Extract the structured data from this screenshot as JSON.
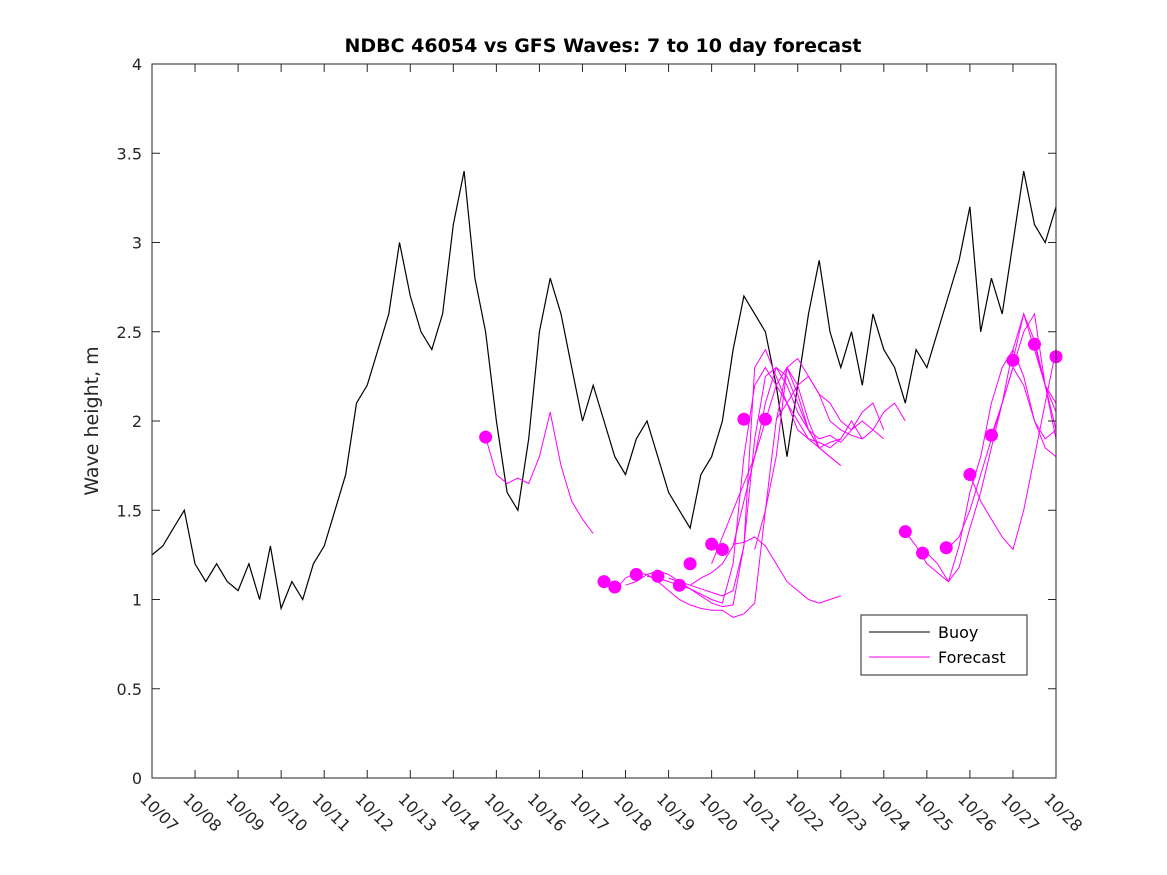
{
  "chart_data": {
    "type": "line",
    "title": "NDBC 46054 vs GFS Waves: 7 to 10 day forecast",
    "xlabel": "",
    "ylabel": "Wave height, m",
    "xlim": [
      0,
      21
    ],
    "ylim": [
      0,
      4
    ],
    "grid": false,
    "legend_location": "bottom-right",
    "x_unit": "days since 10/07 00:00",
    "x_tick_labels": [
      "10/07",
      "10/08",
      "10/09",
      "10/10",
      "10/11",
      "10/12",
      "10/13",
      "10/14",
      "10/15",
      "10/16",
      "10/17",
      "10/18",
      "10/19",
      "10/20",
      "10/21",
      "10/22",
      "10/23",
      "10/24",
      "10/25",
      "10/26",
      "10/27",
      "10/28"
    ],
    "y_ticks": [
      0,
      0.5,
      1,
      1.5,
      2,
      2.5,
      3,
      3.5,
      4
    ],
    "y_tick_labels": [
      "0",
      "0.5",
      "1",
      "1.5",
      "2",
      "2.5",
      "3",
      "3.5",
      "4"
    ],
    "colors": {
      "buoy": "#000000",
      "forecast": "#ff00ff",
      "axis": "#262626"
    },
    "buoy": {
      "name": "Buoy",
      "x": [
        0,
        0.25,
        0.5,
        0.75,
        1.0,
        1.25,
        1.5,
        1.75,
        2.0,
        2.25,
        2.5,
        2.75,
        3.0,
        3.25,
        3.5,
        3.75,
        4.0,
        4.25,
        4.5,
        4.75,
        5.0,
        5.25,
        5.5,
        5.75,
        6.0,
        6.25,
        6.5,
        6.75,
        7.0,
        7.25,
        7.5,
        7.75,
        8.0,
        8.25,
        8.5,
        8.75,
        9.0,
        9.25,
        9.5,
        9.75,
        10.0,
        10.25,
        10.5,
        10.75,
        11.0,
        11.25,
        11.5,
        11.75,
        12.0,
        12.25,
        12.5,
        12.75,
        13.0,
        13.25,
        13.5,
        13.75,
        14.0,
        14.25,
        14.5,
        14.75,
        15.0,
        15.25,
        15.5,
        15.75,
        16.0,
        16.25,
        16.5,
        16.75,
        17.0,
        17.25,
        17.5,
        17.75,
        18.0,
        18.25,
        18.5,
        18.75,
        19.0,
        19.25,
        19.5,
        19.75,
        20.0,
        20.25,
        20.5,
        20.75,
        21.0
      ],
      "y": [
        1.25,
        1.3,
        1.4,
        1.5,
        1.2,
        1.1,
        1.2,
        1.1,
        1.05,
        1.2,
        1.0,
        1.3,
        0.95,
        1.1,
        1.0,
        1.2,
        1.3,
        1.5,
        1.7,
        2.1,
        2.2,
        2.4,
        2.6,
        3.0,
        2.7,
        2.5,
        2.4,
        2.6,
        3.1,
        3.4,
        2.8,
        2.5,
        2.0,
        1.6,
        1.5,
        1.9,
        2.5,
        2.8,
        2.6,
        2.3,
        2.0,
        2.2,
        2.0,
        1.8,
        1.7,
        1.9,
        2.0,
        1.8,
        1.6,
        1.5,
        1.4,
        1.7,
        1.8,
        2.0,
        2.4,
        2.7,
        2.6,
        2.5,
        2.2,
        1.8,
        2.2,
        2.6,
        2.9,
        2.5,
        2.3,
        2.5,
        2.2,
        2.6,
        2.4,
        2.3,
        2.1,
        2.4,
        2.3,
        2.5,
        2.7,
        2.9,
        3.2,
        2.5,
        2.8,
        2.6,
        3.0,
        3.4,
        3.1,
        3.0,
        3.2
      ]
    },
    "forecast": {
      "name": "Forecast",
      "series": [
        {
          "x": [
            7.75,
            8.0,
            8.25,
            8.5,
            8.75,
            9.0,
            9.25,
            9.5,
            9.75,
            10.0,
            10.25
          ],
          "y": [
            1.91,
            1.7,
            1.65,
            1.68,
            1.65,
            1.8,
            2.05,
            1.75,
            1.55,
            1.45,
            1.37
          ]
        },
        {
          "x": [
            10.5,
            10.75,
            11.0,
            11.25,
            11.5,
            11.75,
            12.0,
            12.25,
            12.5,
            12.75,
            13.0,
            13.25,
            13.5,
            13.75,
            14.0,
            14.25,
            14.5,
            14.75,
            15.0,
            15.25,
            15.5
          ],
          "y": [
            1.1,
            1.05,
            1.12,
            1.15,
            1.14,
            1.1,
            1.05,
            1.0,
            0.97,
            0.95,
            0.94,
            0.94,
            0.9,
            0.92,
            0.98,
            1.5,
            2.0,
            2.3,
            2.15,
            1.95,
            1.85
          ]
        },
        {
          "x": [
            11.0,
            11.25,
            11.5,
            11.75,
            12.0,
            12.25,
            12.5,
            12.75,
            13.0,
            13.25,
            13.5,
            13.75,
            14.0,
            14.25,
            14.5,
            14.75,
            15.0,
            15.25,
            15.5,
            15.75,
            16.0
          ],
          "y": [
            1.08,
            1.1,
            1.14,
            1.16,
            1.14,
            1.1,
            1.06,
            1.02,
            0.98,
            0.96,
            0.97,
            1.3,
            2.3,
            2.4,
            2.25,
            2.1,
            2.0,
            1.9,
            1.85,
            1.88,
            1.9
          ]
        },
        {
          "x": [
            11.5,
            11.75,
            12.0,
            12.25,
            12.5,
            12.75,
            13.0,
            13.25,
            13.5,
            13.75,
            14.0,
            14.25,
            14.5,
            14.75,
            15.0,
            15.25,
            15.5,
            15.75,
            16.0,
            16.25,
            16.5
          ],
          "y": [
            1.13,
            1.12,
            1.1,
            1.08,
            1.06,
            1.03,
            1.0,
            0.98,
            1.2,
            1.8,
            2.2,
            2.3,
            2.2,
            2.1,
            1.95,
            1.9,
            1.88,
            1.85,
            1.9,
            2.0,
            1.9
          ]
        },
        {
          "x": [
            12.0,
            12.25,
            12.5,
            12.75,
            13.0,
            13.25,
            13.5,
            13.75,
            14.0,
            14.25,
            14.5,
            14.75,
            15.0,
            15.25,
            15.5,
            15.75,
            16.0,
            16.25,
            16.5,
            16.75,
            17.0
          ],
          "y": [
            1.12,
            1.1,
            1.08,
            1.06,
            1.04,
            1.02,
            1.05,
            1.3,
            1.9,
            2.25,
            2.3,
            2.2,
            2.05,
            1.95,
            1.9,
            1.92,
            1.88,
            1.95,
            2.05,
            2.1,
            1.95
          ]
        },
        {
          "x": [
            12.5,
            12.75,
            13.0,
            13.25,
            13.5,
            13.75,
            14.0,
            14.25,
            14.5,
            14.75,
            15.0,
            15.25,
            15.5,
            15.75,
            16.0
          ],
          "y": [
            1.08,
            1.12,
            1.15,
            1.2,
            1.3,
            1.55,
            1.8,
            2.1,
            2.3,
            2.25,
            2.1,
            1.95,
            1.85,
            1.8,
            1.75
          ]
        },
        {
          "x": [
            13.0,
            13.25,
            13.5,
            13.75,
            14.0,
            14.25,
            14.5,
            14.75,
            15.0,
            15.25,
            15.5,
            15.75,
            16.0
          ],
          "y": [
            1.2,
            1.35,
            1.5,
            1.65,
            1.8,
            2.0,
            2.2,
            2.3,
            2.2,
            2.0,
            1.85,
            1.8,
            1.75
          ]
        },
        {
          "x": [
            13.5,
            13.75,
            14.0,
            14.25,
            14.5,
            14.75,
            15.0,
            15.25,
            15.5,
            15.75,
            16.0
          ],
          "y": [
            1.31,
            1.32,
            1.35,
            1.3,
            1.2,
            1.1,
            1.05,
            1.0,
            0.98,
            1.0,
            1.02
          ]
        },
        {
          "x": [
            14.0,
            14.25,
            14.5,
            14.75,
            15.0,
            15.25,
            15.5,
            15.75,
            16.0,
            16.25,
            16.5,
            16.75,
            17.0
          ],
          "y": [
            1.28,
            1.5,
            1.8,
            2.3,
            2.35,
            2.25,
            2.15,
            2.1,
            2.0,
            1.95,
            2.0,
            1.95,
            1.9
          ]
        },
        {
          "x": [
            14.5,
            14.75,
            15.0,
            15.25,
            15.5,
            15.75,
            16.0,
            16.25,
            16.5,
            16.75,
            17.0,
            17.25,
            17.5
          ],
          "y": [
            2.01,
            2.1,
            2.2,
            2.25,
            2.15,
            2.0,
            1.95,
            1.92,
            1.9,
            1.95,
            2.05,
            2.1,
            2.0
          ]
        },
        {
          "x": [
            17.5,
            17.75,
            18.0,
            18.25,
            18.5,
            18.75,
            19.0,
            19.25,
            19.5,
            19.75,
            20.0,
            20.25,
            20.5,
            20.75,
            21.0
          ],
          "y": [
            1.38,
            1.3,
            1.2,
            1.15,
            1.1,
            1.3,
            1.6,
            1.8,
            2.1,
            2.3,
            2.4,
            2.25,
            2.0,
            1.9,
            1.95
          ]
        },
        {
          "x": [
            18.0,
            18.25,
            18.5,
            18.75,
            19.0,
            19.25,
            19.5,
            19.75,
            20.0,
            20.25,
            20.5,
            20.75,
            21.0
          ],
          "y": [
            1.26,
            1.2,
            1.1,
            1.18,
            1.4,
            1.6,
            1.85,
            2.1,
            2.3,
            2.2,
            2.0,
            1.85,
            1.8
          ]
        },
        {
          "x": [
            18.5,
            18.75,
            19.0,
            19.25,
            19.5,
            19.75,
            20.0,
            20.25,
            20.5,
            20.75,
            21.0
          ],
          "y": [
            1.29,
            1.35,
            1.5,
            1.7,
            1.9,
            2.1,
            2.3,
            2.5,
            2.6,
            2.2,
            1.9
          ]
        },
        {
          "x": [
            19.0,
            19.25,
            19.5,
            19.75,
            20.0,
            20.25,
            20.5,
            20.75,
            21.0
          ],
          "y": [
            1.7,
            1.55,
            1.45,
            1.35,
            1.28,
            1.5,
            1.8,
            2.1,
            2.4
          ]
        },
        {
          "x": [
            19.5,
            19.75,
            20.0,
            20.25,
            20.5,
            20.75,
            21.0
          ],
          "y": [
            1.92,
            2.1,
            2.4,
            2.6,
            2.4,
            2.2,
            2.1
          ]
        },
        {
          "x": [
            20.0,
            20.25,
            20.5,
            20.75,
            21.0
          ],
          "y": [
            2.34,
            2.6,
            2.45,
            2.2,
            2.05
          ]
        },
        {
          "x": [
            20.5,
            20.75,
            21.0
          ],
          "y": [
            2.43,
            2.2,
            1.95
          ]
        }
      ],
      "markers": {
        "x": [
          7.75,
          10.5,
          10.75,
          11.25,
          11.75,
          12.25,
          12.5,
          13.0,
          13.25,
          13.75,
          14.25,
          17.5,
          17.9,
          18.45,
          19.0,
          19.5,
          20.0,
          20.5,
          21.0
        ],
        "y": [
          1.91,
          1.1,
          1.07,
          1.14,
          1.13,
          1.08,
          1.2,
          1.31,
          1.28,
          2.01,
          2.01,
          1.38,
          1.26,
          1.29,
          1.7,
          1.92,
          2.34,
          2.43,
          2.36
        ]
      }
    }
  }
}
